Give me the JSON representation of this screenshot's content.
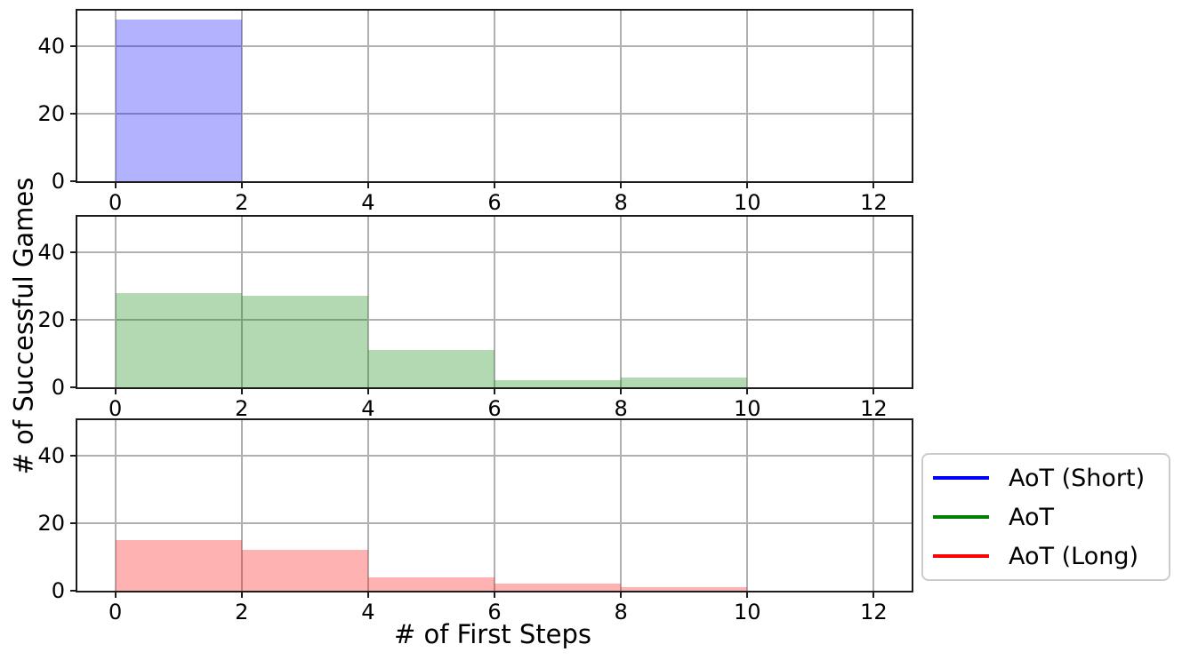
{
  "figure": {
    "xlabel": "# of First Steps",
    "ylabel": "# of Successful Games"
  },
  "chart_data": {
    "type": "bar",
    "variant": "histogram, 3 vertically stacked subplots sharing x and y scales",
    "title": "",
    "xlabel": "# of First Steps",
    "ylabel": "# of Successful Games",
    "bin_edges": [
      0,
      2,
      4,
      6,
      8,
      10,
      12
    ],
    "xticks": [
      0,
      2,
      4,
      6,
      8,
      10,
      12
    ],
    "yticks": [
      0,
      20,
      40
    ],
    "xlim": [
      -0.6,
      12.6
    ],
    "ylim": [
      0,
      50.5
    ],
    "grid": true,
    "grid_color": "#b0b0b0",
    "spine_color": "#1c1c1c",
    "legend_position": "outside right, aligned with bottom subplot",
    "series": [
      {
        "name": "AoT (Short)",
        "subplot": 0,
        "line_color": "#0000ff",
        "fill_color": "rgba(0,0,255,0.3)",
        "counts": [
          48,
          0,
          0,
          0,
          0,
          0
        ]
      },
      {
        "name": "AoT",
        "subplot": 1,
        "line_color": "#008000",
        "fill_color": "rgba(0,128,0,0.3)",
        "counts": [
          28,
          27,
          11,
          2,
          3,
          0
        ]
      },
      {
        "name": "AoT (Long)",
        "subplot": 2,
        "line_color": "#ff0000",
        "fill_color": "rgba(255,0,0,0.3)",
        "counts": [
          15,
          12,
          4,
          2,
          1,
          0
        ]
      }
    ]
  },
  "legend": {
    "items": [
      {
        "label": "AoT (Short)",
        "color": "#0000ff"
      },
      {
        "label": "AoT",
        "color": "#008000"
      },
      {
        "label": "AoT (Long)",
        "color": "#ff0000"
      }
    ]
  }
}
